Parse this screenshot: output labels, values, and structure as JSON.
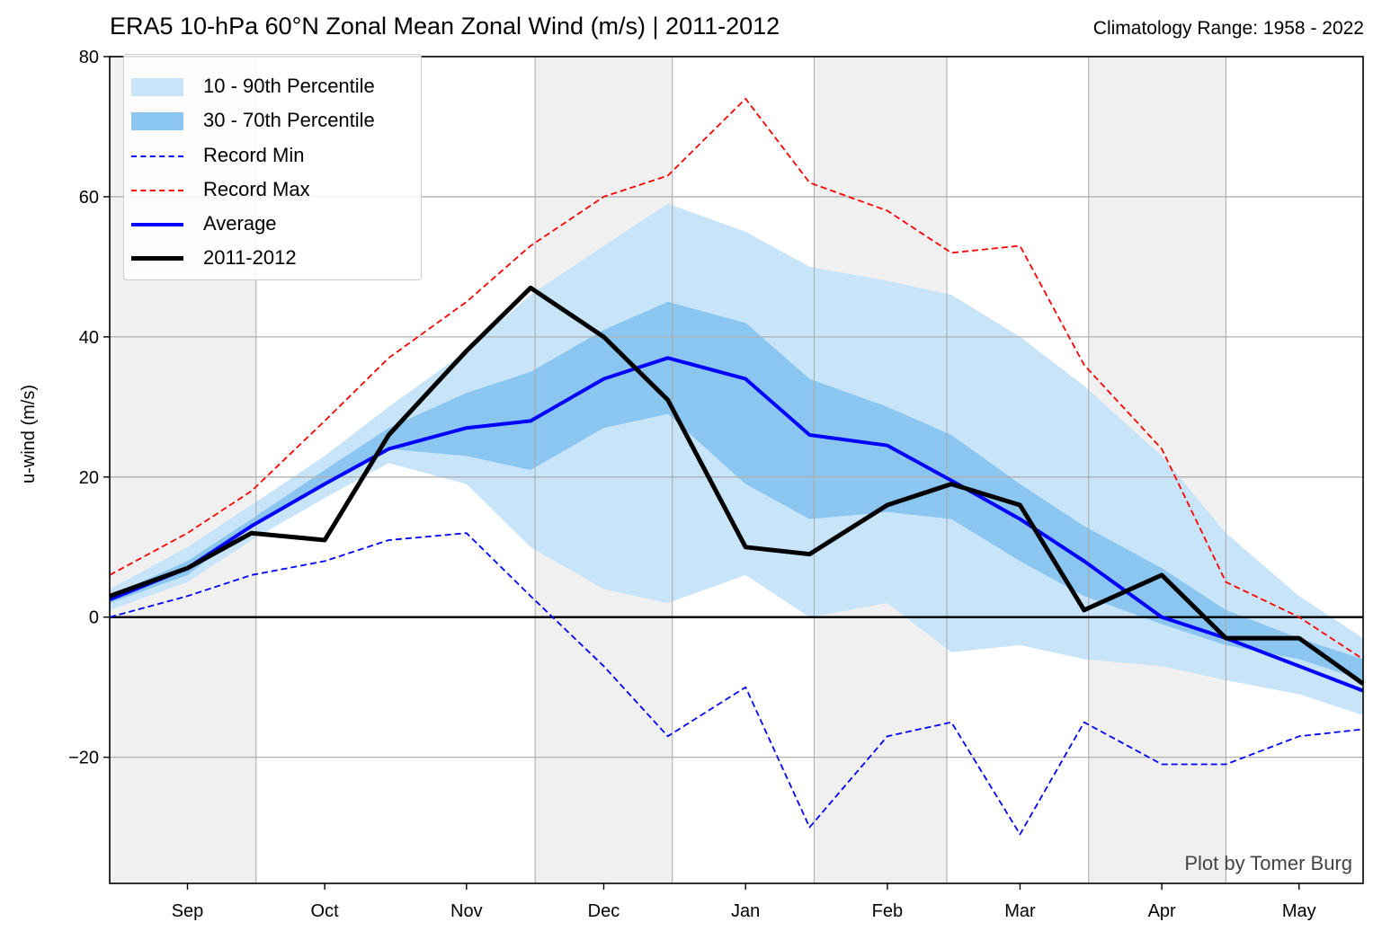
{
  "chart_data": {
    "type": "line",
    "title": "ERA5 10-hPa 60°N Zonal Mean Zonal Wind (m/s) | 2011-2012",
    "subtitle": "Climatology Range: 1958 - 2022",
    "ylabel": "u-wind (m/s)",
    "xlabel": "",
    "x_range": [
      "2011-08-15",
      "2012-05-15"
    ],
    "ylim": [
      -38,
      80
    ],
    "y_ticks": [
      -20,
      0,
      20,
      40,
      60,
      80
    ],
    "y_tick_labels": [
      "−20",
      "0",
      "20",
      "40",
      "60",
      "80"
    ],
    "month_ticks": [
      {
        "label": "Sep",
        "date": "2011-09-01"
      },
      {
        "label": "Oct",
        "date": "2011-10-01"
      },
      {
        "label": "Nov",
        "date": "2011-11-01"
      },
      {
        "label": "Dec",
        "date": "2011-12-01"
      },
      {
        "label": "Jan",
        "date": "2012-01-01"
      },
      {
        "label": "Feb",
        "date": "2012-02-01"
      },
      {
        "label": "Mar",
        "date": "2012-03-01"
      },
      {
        "label": "Apr",
        "date": "2012-04-01"
      },
      {
        "label": "May",
        "date": "2012-05-01"
      }
    ],
    "shaded_periods": [
      [
        "2011-08-15",
        "2011-09-16"
      ],
      [
        "2011-11-16",
        "2011-12-16"
      ],
      [
        "2012-01-16",
        "2012-02-14"
      ],
      [
        "2012-03-16",
        "2012-04-15"
      ]
    ],
    "grid": true,
    "legend_position": "top-left",
    "credit": "Plot by Tomer Burg",
    "x": [
      "2011-08-15",
      "2011-09-01",
      "2011-09-15",
      "2011-10-01",
      "2011-10-15",
      "2011-11-01",
      "2011-11-15",
      "2011-12-01",
      "2011-12-15",
      "2012-01-01",
      "2012-01-15",
      "2012-02-01",
      "2012-02-15",
      "2012-03-01",
      "2012-03-15",
      "2012-04-01",
      "2012-04-15",
      "2012-05-01",
      "2012-05-15"
    ],
    "series": [
      {
        "name": "10 - 90th Percentile",
        "kind": "band",
        "color": "#c8e4f8",
        "low": [
          1,
          5,
          11,
          17,
          22,
          19,
          10,
          4,
          2,
          6,
          0,
          2,
          -5,
          -4,
          -6,
          -7,
          -9,
          -11,
          -14
        ],
        "high": [
          4,
          10,
          16,
          23,
          30,
          38,
          46,
          53,
          59,
          55,
          50,
          48,
          46,
          40,
          33,
          23,
          12,
          3,
          -3
        ]
      },
      {
        "name": "30 - 70th Percentile",
        "kind": "band",
        "color": "#8bc6f1",
        "low": [
          2,
          6,
          13,
          19,
          24,
          23,
          21,
          27,
          29,
          19,
          14,
          15,
          14,
          8,
          3,
          -1,
          -4,
          -6,
          -9
        ],
        "high": [
          3,
          8,
          14,
          21,
          27,
          32,
          35,
          41,
          45,
          42,
          34,
          30,
          26,
          19,
          13,
          7,
          1,
          -3,
          -6
        ]
      },
      {
        "name": "Record Min",
        "kind": "line",
        "color": "#0000ff",
        "dash": "7,4",
        "values": [
          0,
          3,
          6,
          8,
          11,
          12,
          3,
          -7,
          -17,
          -10,
          -30,
          -17,
          -15,
          -31,
          -15,
          -21,
          -21,
          -17,
          -16
        ]
      },
      {
        "name": "Record Max",
        "kind": "line",
        "color": "#ff0000",
        "dash": "7,4",
        "values": [
          6,
          12,
          18,
          28,
          37,
          45,
          53,
          60,
          63,
          74,
          62,
          58,
          52,
          53,
          36,
          24,
          5,
          0,
          -6
        ]
      },
      {
        "name": "Average",
        "kind": "line",
        "color": "#0000ff",
        "width": 4,
        "values": [
          2.5,
          7,
          13,
          19,
          24,
          27,
          28,
          34,
          37,
          34,
          26,
          24.5,
          19.5,
          14,
          8,
          0,
          -3,
          -7,
          -10.5
        ]
      },
      {
        "name": "2011-2012",
        "kind": "line",
        "color": "#000000",
        "width": 5,
        "values": [
          3,
          7,
          12,
          11,
          26,
          38,
          47,
          40,
          31,
          10,
          9,
          16,
          19,
          16,
          1,
          6,
          -3,
          -3,
          -9.5
        ]
      }
    ],
    "zero_line": 0
  }
}
